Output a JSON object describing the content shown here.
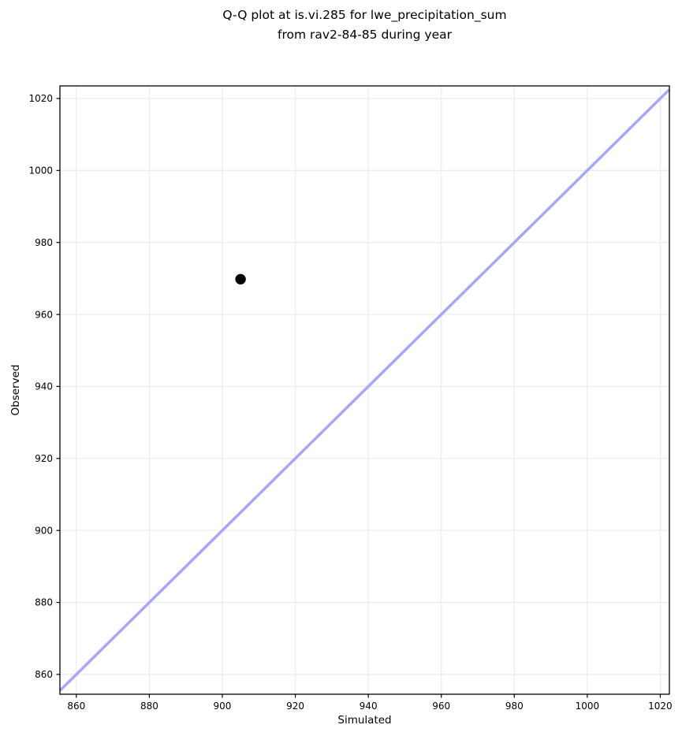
{
  "title": {
    "line1": "Q-Q plot at is.vi.285 for lwe_precipitation_sum",
    "line2": "from rav2-84-85 during year"
  },
  "chart_data": {
    "type": "scatter",
    "title": "Q-Q plot at is.vi.285 for lwe_precipitation_sum\nfrom rav2-84-85 during year",
    "xlabel": "Simulated",
    "ylabel": "Observed",
    "xlim": [
      855.5,
      1022.5
    ],
    "ylim": [
      854.5,
      1023.5
    ],
    "xticks": [
      860,
      880,
      900,
      920,
      940,
      960,
      980,
      1000,
      1020
    ],
    "yticks": [
      860,
      880,
      900,
      920,
      940,
      960,
      980,
      1000,
      1020
    ],
    "grid": true,
    "legend": "none",
    "points": [
      {
        "simulated": 905,
        "observed": 969.8
      }
    ],
    "identity_line": {
      "description": "y = x reference line drawn corner to corner",
      "x_start": 855.5,
      "y_start": 855.5,
      "x_end": 1022.5,
      "y_end": 1022.5
    },
    "colors": {
      "point": "#000000",
      "identity_line": "#a7a7f7",
      "grid": "#ebebeb",
      "spine": "#000000",
      "background": "#ffffff"
    }
  }
}
